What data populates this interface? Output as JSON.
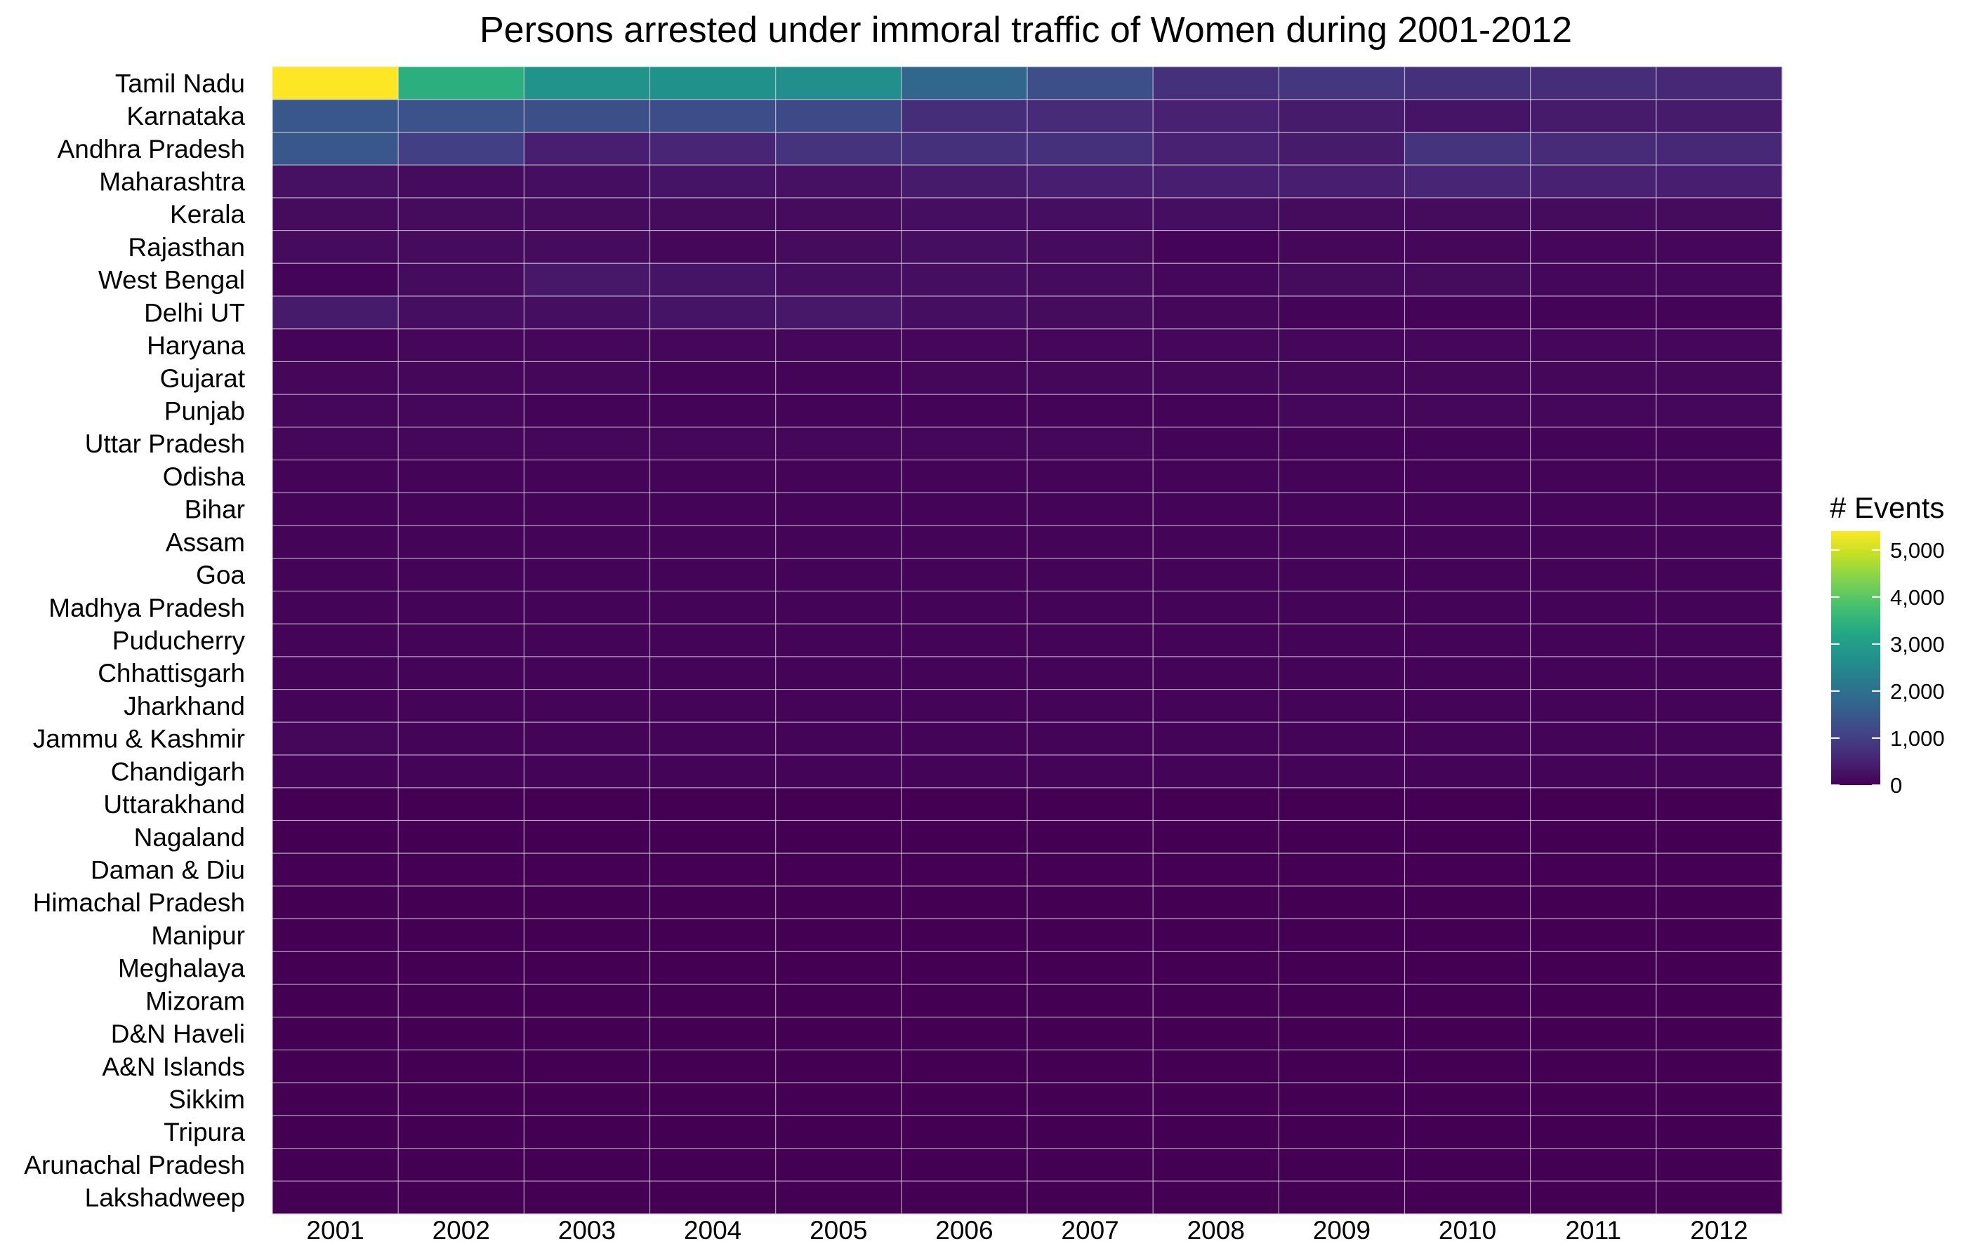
{
  "chart_data": {
    "type": "heatmap",
    "title": "Persons arrested under immoral traffic of Women during 2001-2012",
    "xlabel": "",
    "ylabel": "",
    "x": [
      "2001",
      "2002",
      "2003",
      "2004",
      "2005",
      "2006",
      "2007",
      "2008",
      "2009",
      "2010",
      "2011",
      "2012"
    ],
    "y": [
      "Tamil Nadu",
      "Karnataka",
      "Andhra Pradesh",
      "Maharashtra",
      "Kerala",
      "Rajasthan",
      "West Bengal",
      "Delhi UT",
      "Haryana",
      "Gujarat",
      "Punjab",
      "Uttar Pradesh",
      "Odisha",
      "Bihar",
      "Assam",
      "Goa",
      "Madhya Pradesh",
      "Puducherry",
      "Chhattisgarh",
      "Jharkhand",
      "Jammu & Kashmir",
      "Chandigarh",
      "Uttarakhand",
      "Nagaland",
      "Daman & Diu",
      "Himachal Pradesh",
      "Manipur",
      "Meghalaya",
      "Mizoram",
      "D&N Haveli",
      "A&N Islands",
      "Sikkim",
      "Tripura",
      "Arunachal Pradesh",
      "Lakshadweep"
    ],
    "values": [
      [
        5400,
        3400,
        2750,
        2700,
        2650,
        1800,
        1300,
        750,
        850,
        750,
        700,
        600
      ],
      [
        1450,
        1350,
        1300,
        1250,
        1200,
        700,
        650,
        500,
        400,
        300,
        400,
        400
      ],
      [
        1450,
        1000,
        450,
        550,
        800,
        750,
        750,
        500,
        400,
        800,
        650,
        600
      ],
      [
        250,
        150,
        200,
        300,
        250,
        400,
        450,
        450,
        450,
        550,
        500,
        450
      ],
      [
        150,
        150,
        150,
        150,
        150,
        200,
        200,
        200,
        150,
        150,
        150,
        150
      ],
      [
        150,
        150,
        150,
        100,
        150,
        200,
        150,
        50,
        100,
        100,
        100,
        100
      ],
      [
        50,
        150,
        350,
        300,
        200,
        200,
        150,
        100,
        150,
        150,
        100,
        100
      ],
      [
        400,
        200,
        200,
        300,
        350,
        200,
        150,
        100,
        50,
        50,
        50,
        50
      ],
      [
        50,
        100,
        100,
        100,
        100,
        100,
        100,
        100,
        100,
        100,
        100,
        100
      ],
      [
        100,
        100,
        100,
        50,
        50,
        100,
        100,
        100,
        100,
        100,
        100,
        100
      ],
      [
        100,
        100,
        50,
        50,
        50,
        50,
        50,
        50,
        100,
        100,
        100,
        100
      ],
      [
        100,
        100,
        100,
        100,
        100,
        100,
        100,
        50,
        50,
        50,
        50,
        50
      ],
      [
        50,
        50,
        50,
        50,
        50,
        50,
        50,
        50,
        50,
        50,
        50,
        50
      ],
      [
        50,
        50,
        50,
        50,
        50,
        50,
        50,
        50,
        50,
        50,
        50,
        50
      ],
      [
        50,
        50,
        50,
        50,
        50,
        50,
        50,
        50,
        50,
        50,
        50,
        50
      ],
      [
        50,
        50,
        50,
        50,
        50,
        50,
        50,
        50,
        50,
        50,
        50,
        50
      ],
      [
        50,
        50,
        50,
        50,
        50,
        50,
        50,
        50,
        50,
        50,
        50,
        50
      ],
      [
        50,
        50,
        50,
        50,
        50,
        50,
        50,
        50,
        50,
        50,
        50,
        50
      ],
      [
        50,
        50,
        50,
        50,
        50,
        50,
        50,
        50,
        50,
        50,
        50,
        50
      ],
      [
        50,
        50,
        50,
        50,
        50,
        50,
        50,
        50,
        50,
        50,
        50,
        50
      ],
      [
        100,
        50,
        50,
        50,
        50,
        50,
        50,
        50,
        50,
        50,
        50,
        50
      ],
      [
        50,
        50,
        50,
        50,
        50,
        50,
        50,
        50,
        50,
        50,
        50,
        50
      ],
      [
        0,
        0,
        0,
        0,
        0,
        0,
        0,
        0,
        0,
        0,
        0,
        0
      ],
      [
        0,
        0,
        0,
        0,
        0,
        0,
        0,
        0,
        0,
        0,
        0,
        0
      ],
      [
        0,
        0,
        0,
        0,
        0,
        0,
        0,
        0,
        0,
        0,
        0,
        0
      ],
      [
        0,
        0,
        0,
        0,
        0,
        0,
        0,
        0,
        0,
        0,
        0,
        0
      ],
      [
        0,
        0,
        0,
        0,
        0,
        0,
        0,
        0,
        0,
        0,
        0,
        0
      ],
      [
        0,
        0,
        0,
        0,
        0,
        0,
        0,
        0,
        0,
        0,
        0,
        0
      ],
      [
        0,
        0,
        0,
        0,
        0,
        0,
        0,
        0,
        0,
        0,
        0,
        0
      ],
      [
        0,
        0,
        0,
        0,
        0,
        0,
        0,
        0,
        0,
        0,
        0,
        0
      ],
      [
        0,
        0,
        0,
        0,
        0,
        0,
        0,
        0,
        0,
        0,
        0,
        0
      ],
      [
        0,
        0,
        0,
        0,
        0,
        0,
        0,
        0,
        0,
        0,
        0,
        0
      ],
      [
        0,
        0,
        0,
        0,
        0,
        0,
        0,
        0,
        0,
        0,
        0,
        0
      ],
      [
        0,
        0,
        0,
        0,
        0,
        0,
        0,
        0,
        0,
        0,
        0,
        0
      ],
      [
        0,
        0,
        0,
        0,
        0,
        0,
        0,
        0,
        0,
        0,
        0,
        0
      ]
    ],
    "colorscale": "viridis",
    "value_range": [
      0,
      5400
    ],
    "legend": {
      "title": "# Events",
      "ticks": [
        0,
        1000,
        2000,
        3000,
        4000,
        5000
      ],
      "tick_labels": [
        "0",
        "1,000",
        "2,000",
        "3,000",
        "4,000",
        "5,000"
      ],
      "placement": "right"
    },
    "grid": true,
    "grid_color": "#e6e6e6"
  }
}
